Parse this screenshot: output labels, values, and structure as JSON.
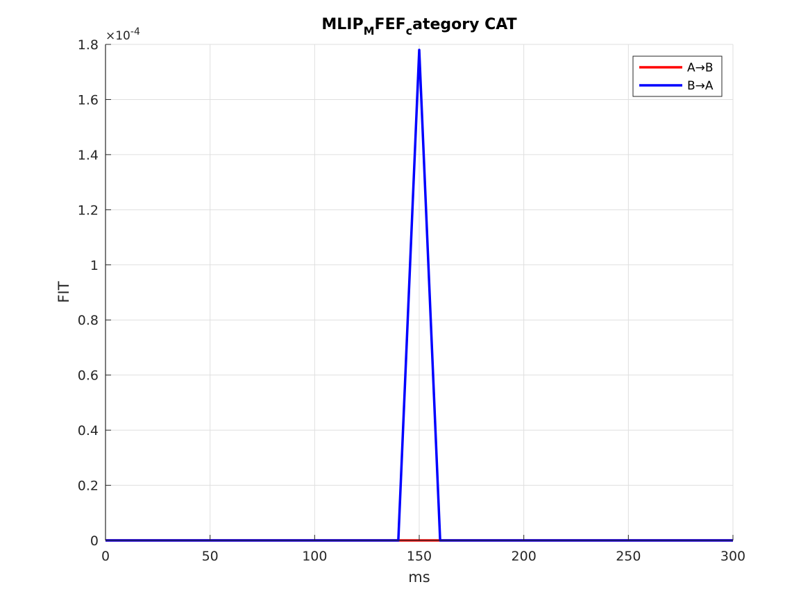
{
  "chart_data": {
    "type": "line",
    "title": {
      "parts": [
        {
          "text": "MLIP",
          "sub": false
        },
        {
          "text": "M",
          "sub": true
        },
        {
          "text": "FEF",
          "sub": false
        },
        {
          "text": "c",
          "sub": true
        },
        {
          "text": "ategory CAT",
          "sub": false
        }
      ]
    },
    "xlabel": "ms",
    "ylabel": "FIT",
    "y_exponent_label": "×10",
    "y_exponent_power": "-4",
    "xlim": [
      0,
      300
    ],
    "ylim": [
      0,
      1.8
    ],
    "x_ticks": [
      0,
      50,
      100,
      150,
      200,
      250,
      300
    ],
    "x_tick_labels": [
      "0",
      "50",
      "100",
      "150",
      "200",
      "250",
      "300"
    ],
    "y_ticks": [
      0,
      0.2,
      0.4,
      0.6,
      0.8,
      1.0,
      1.2,
      1.4,
      1.6,
      1.8
    ],
    "y_tick_labels": [
      "0",
      "0.2",
      "0.4",
      "0.6",
      "0.8",
      "1",
      "1.2",
      "1.4",
      "1.6",
      "1.8"
    ],
    "grid": true,
    "legend_position": "top-right",
    "series": [
      {
        "name": "A→B",
        "color": "#ff0000",
        "x": [
          0,
          10,
          20,
          30,
          40,
          50,
          60,
          70,
          80,
          90,
          100,
          110,
          120,
          130,
          140,
          150,
          160,
          170,
          180,
          190,
          200,
          210,
          220,
          230,
          240,
          250,
          260,
          270,
          280,
          290,
          300
        ],
        "y": [
          0,
          0,
          0,
          0,
          0,
          0,
          0,
          0,
          0,
          0,
          0,
          0,
          0,
          0,
          0,
          0,
          0,
          0,
          0,
          0,
          0,
          0,
          0,
          0,
          0,
          0,
          0,
          0,
          0,
          0,
          0
        ]
      },
      {
        "name": "B→A",
        "color": "#0000ff",
        "x": [
          0,
          10,
          20,
          30,
          40,
          50,
          60,
          70,
          80,
          90,
          100,
          110,
          120,
          130,
          140,
          150,
          160,
          170,
          180,
          190,
          200,
          210,
          220,
          230,
          240,
          250,
          260,
          270,
          280,
          290,
          300
        ],
        "y": [
          0,
          0,
          0,
          0,
          0,
          0,
          0,
          0,
          0,
          0,
          0,
          0,
          0,
          0,
          0,
          1.78,
          0,
          0,
          0,
          0,
          0,
          0,
          0,
          0,
          0,
          0,
          0,
          0,
          0,
          0,
          0
        ]
      }
    ]
  }
}
